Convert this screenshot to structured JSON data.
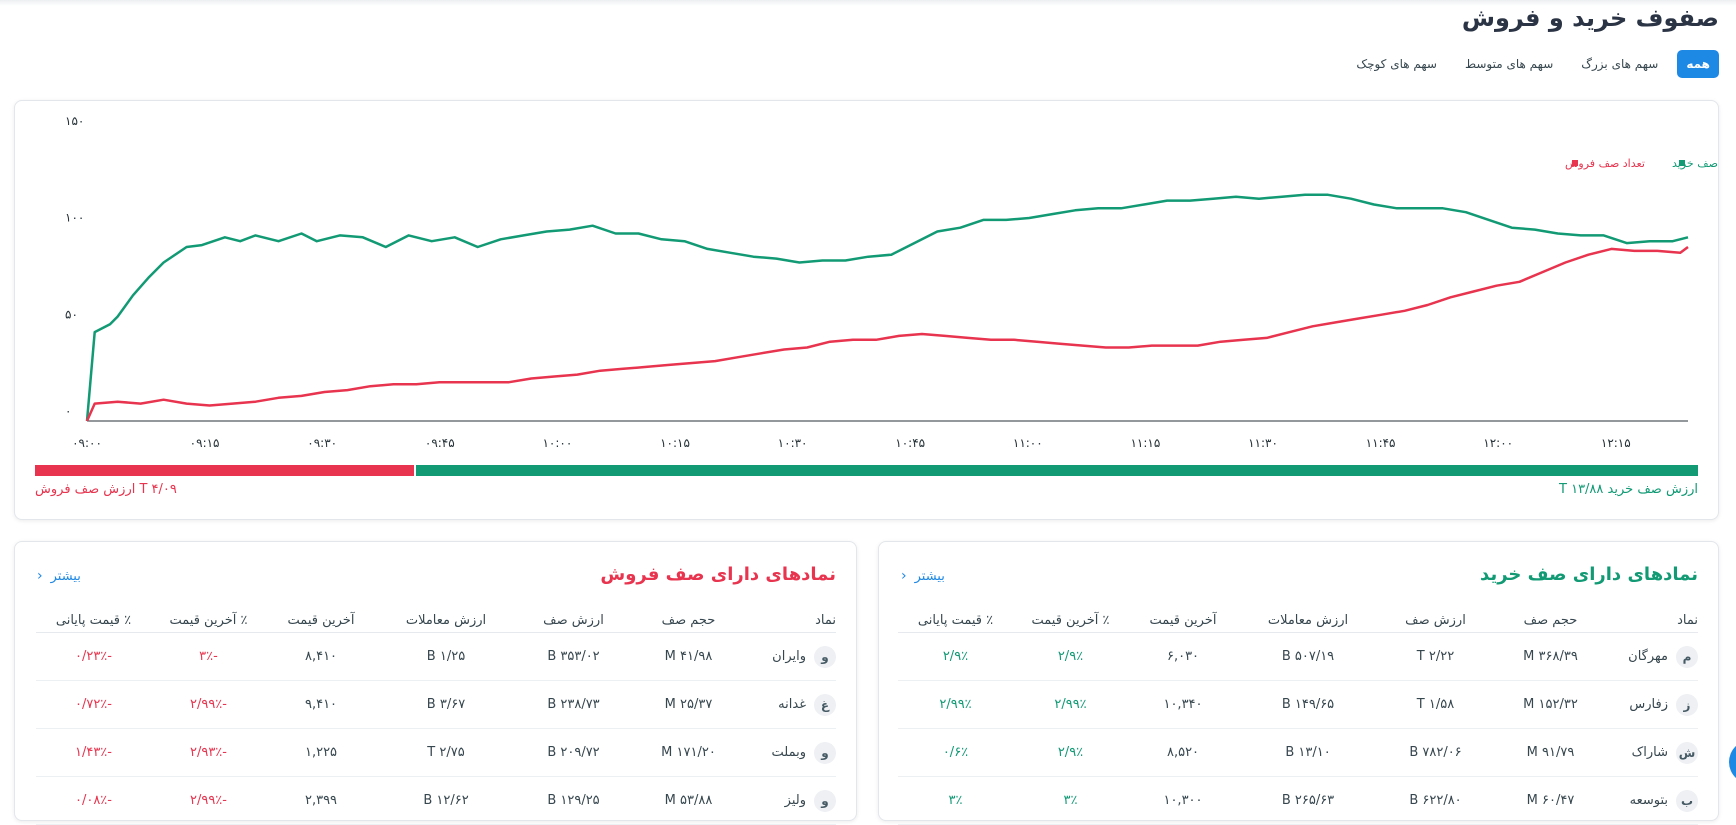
{
  "page": {
    "title": "صفوف خرید و فروش",
    "tabs": [
      {
        "label": "همه",
        "active": true
      },
      {
        "label": "سهم های بزرگ",
        "active": false
      },
      {
        "label": "سهم های متوسط",
        "active": false
      },
      {
        "label": "سهم های کوچک",
        "active": false
      }
    ]
  },
  "colors": {
    "buy": "#119a74",
    "sell": "#e8344e",
    "accent": "#1e88e5"
  },
  "chart_data": {
    "type": "line",
    "title": "",
    "xlabel": "",
    "ylabel": "",
    "x_ticks": [
      "۰۹:۰۰",
      "۰۹:۱۵",
      "۰۹:۳۰",
      "۰۹:۴۵",
      "۱۰:۰۰",
      "۱۰:۱۵",
      "۱۰:۳۰",
      "۱۰:۴۵",
      "۱۱:۰۰",
      "۱۱:۱۵",
      "۱۱:۳۰",
      "۱۱:۴۵",
      "۱۲:۰۰",
      "۱۲:۱۵"
    ],
    "x_range_minutes": [
      "09:00",
      "12:29"
    ],
    "y_ticks": [
      "۰",
      "۵۰",
      "۱۰۰",
      "۱۵۰"
    ],
    "ylim": [
      0,
      150
    ],
    "grid": false,
    "legend_position": "top-right",
    "series": [
      {
        "name": "تعداد صف خرید",
        "color": "#119a74",
        "points": [
          [
            "09:00",
            0
          ],
          [
            "09:01",
            46
          ],
          [
            "09:03",
            50
          ],
          [
            "09:04",
            54
          ],
          [
            "09:06",
            65
          ],
          [
            "09:08",
            74
          ],
          [
            "09:10",
            82
          ],
          [
            "09:13",
            90
          ],
          [
            "09:15",
            91
          ],
          [
            "09:18",
            95
          ],
          [
            "09:20",
            93
          ],
          [
            "09:22",
            96
          ],
          [
            "09:25",
            93
          ],
          [
            "09:28",
            97
          ],
          [
            "09:30",
            93
          ],
          [
            "09:33",
            96
          ],
          [
            "09:36",
            95
          ],
          [
            "09:39",
            90
          ],
          [
            "09:42",
            96
          ],
          [
            "09:45",
            93
          ],
          [
            "09:48",
            95
          ],
          [
            "09:51",
            90
          ],
          [
            "09:54",
            94
          ],
          [
            "09:57",
            96
          ],
          [
            "10:00",
            98
          ],
          [
            "10:03",
            99
          ],
          [
            "10:06",
            101
          ],
          [
            "10:09",
            97
          ],
          [
            "10:12",
            97
          ],
          [
            "10:15",
            94
          ],
          [
            "10:18",
            93
          ],
          [
            "10:21",
            89
          ],
          [
            "10:24",
            87
          ],
          [
            "10:27",
            85
          ],
          [
            "10:30",
            84
          ],
          [
            "10:33",
            82
          ],
          [
            "10:36",
            83
          ],
          [
            "10:39",
            83
          ],
          [
            "10:42",
            85
          ],
          [
            "10:45",
            86
          ],
          [
            "10:48",
            92
          ],
          [
            "10:51",
            98
          ],
          [
            "10:54",
            100
          ],
          [
            "10:57",
            104
          ],
          [
            "11:00",
            104
          ],
          [
            "11:03",
            105
          ],
          [
            "11:06",
            107
          ],
          [
            "11:09",
            109
          ],
          [
            "11:12",
            110
          ],
          [
            "11:15",
            110
          ],
          [
            "11:18",
            112
          ],
          [
            "11:21",
            114
          ],
          [
            "11:24",
            114
          ],
          [
            "11:27",
            115
          ],
          [
            "11:30",
            116
          ],
          [
            "11:33",
            115
          ],
          [
            "11:36",
            116
          ],
          [
            "11:39",
            117
          ],
          [
            "11:42",
            117
          ],
          [
            "11:45",
            115
          ],
          [
            "11:48",
            112
          ],
          [
            "11:51",
            110
          ],
          [
            "11:54",
            110
          ],
          [
            "11:57",
            110
          ],
          [
            "12:00",
            108
          ],
          [
            "12:03",
            104
          ],
          [
            "12:06",
            100
          ],
          [
            "12:09",
            99
          ],
          [
            "12:12",
            97
          ],
          [
            "12:15",
            96
          ],
          [
            "12:18",
            96
          ],
          [
            "12:21",
            92
          ],
          [
            "12:24",
            93
          ],
          [
            "12:27",
            93
          ],
          [
            "12:29",
            95
          ]
        ]
      },
      {
        "name": "تعداد صف فروش",
        "color": "#e8344e",
        "points": [
          [
            "09:00",
            0
          ],
          [
            "09:01",
            9
          ],
          [
            "09:04",
            10
          ],
          [
            "09:07",
            9
          ],
          [
            "09:10",
            11
          ],
          [
            "09:13",
            9
          ],
          [
            "09:16",
            8
          ],
          [
            "09:19",
            9
          ],
          [
            "09:22",
            10
          ],
          [
            "09:25",
            12
          ],
          [
            "09:28",
            13
          ],
          [
            "09:31",
            15
          ],
          [
            "09:34",
            16
          ],
          [
            "09:37",
            18
          ],
          [
            "09:40",
            19
          ],
          [
            "09:43",
            19
          ],
          [
            "09:46",
            20
          ],
          [
            "09:49",
            20
          ],
          [
            "09:52",
            20
          ],
          [
            "09:55",
            20
          ],
          [
            "09:58",
            22
          ],
          [
            "10:01",
            23
          ],
          [
            "10:04",
            24
          ],
          [
            "10:07",
            26
          ],
          [
            "10:10",
            27
          ],
          [
            "10:13",
            28
          ],
          [
            "10:16",
            29
          ],
          [
            "10:19",
            30
          ],
          [
            "10:22",
            31
          ],
          [
            "10:25",
            33
          ],
          [
            "10:28",
            35
          ],
          [
            "10:31",
            37
          ],
          [
            "10:34",
            38
          ],
          [
            "10:37",
            41
          ],
          [
            "10:40",
            42
          ],
          [
            "10:43",
            42
          ],
          [
            "10:46",
            44
          ],
          [
            "10:49",
            45
          ],
          [
            "10:52",
            44
          ],
          [
            "10:55",
            43
          ],
          [
            "10:58",
            42
          ],
          [
            "11:01",
            42
          ],
          [
            "11:04",
            41
          ],
          [
            "11:07",
            40
          ],
          [
            "11:10",
            39
          ],
          [
            "11:13",
            38
          ],
          [
            "11:16",
            38
          ],
          [
            "11:19",
            39
          ],
          [
            "11:22",
            39
          ],
          [
            "11:25",
            39
          ],
          [
            "11:28",
            41
          ],
          [
            "11:31",
            42
          ],
          [
            "11:34",
            43
          ],
          [
            "11:37",
            46
          ],
          [
            "11:40",
            49
          ],
          [
            "11:43",
            51
          ],
          [
            "11:46",
            53
          ],
          [
            "11:49",
            55
          ],
          [
            "11:52",
            57
          ],
          [
            "11:55",
            60
          ],
          [
            "11:58",
            64
          ],
          [
            "12:01",
            67
          ],
          [
            "12:04",
            70
          ],
          [
            "12:07",
            72
          ],
          [
            "12:10",
            77
          ],
          [
            "12:13",
            82
          ],
          [
            "12:16",
            86
          ],
          [
            "12:19",
            89
          ],
          [
            "12:22",
            88
          ],
          [
            "12:25",
            88
          ],
          [
            "12:28",
            87
          ],
          [
            "12:29",
            90
          ]
        ]
      }
    ]
  },
  "queue_value": {
    "buy_label": "ارزش صف خرید T ۱۳/۸۸",
    "sell_label": "T ۴/۰۹ ارزش صف فروش",
    "buy_value_t": 13.88,
    "sell_value_t": 4.09
  },
  "buy_panel": {
    "title": "نمادهای دارای صف خرید",
    "more": "بیشتر",
    "columns": [
      "نماد",
      "حجم صف",
      "ارزش صف",
      "ارزش معاملات",
      "آخرین قیمت",
      "٪ آخرین قیمت",
      "٪ قیمت پایانی"
    ],
    "rows": [
      {
        "avatar": "م",
        "symbol": "مهرگان",
        "queue_volume": "۳۶۸/۳۹ M",
        "queue_value": "۲/۲۲ T",
        "trade_value": "۵۰۷/۱۹ B",
        "last_price": "۶,۰۳۰",
        "last_pct": "۲/۹٪",
        "close_pct": "۲/۹٪"
      },
      {
        "avatar": "ز",
        "symbol": "زفارس",
        "queue_volume": "۱۵۲/۳۲ M",
        "queue_value": "۱/۵۸ T",
        "trade_value": "۱۴۹/۶۵ B",
        "last_price": "۱۰,۳۴۰",
        "last_pct": "۲/۹۹٪",
        "close_pct": "۲/۹۹٪"
      },
      {
        "avatar": "ش",
        "symbol": "شاراک",
        "queue_volume": "۹۱/۷۹ M",
        "queue_value": "۷۸۲/۰۶ B",
        "trade_value": "۱۳/۱۰ B",
        "last_price": "۸,۵۲۰",
        "last_pct": "۲/۹٪",
        "close_pct": "۰/۶٪"
      },
      {
        "avatar": "ب",
        "symbol": "بتوسعه",
        "queue_volume": "۶۰/۴۷ M",
        "queue_value": "۶۲۲/۸۰ B",
        "trade_value": "۲۶۵/۶۳ B",
        "last_price": "۱۰,۳۰۰",
        "last_pct": "۳٪",
        "close_pct": "۳٪"
      }
    ]
  },
  "sell_panel": {
    "title": "نمادهای دارای صف فروش",
    "more": "بیشتر",
    "columns": [
      "نماد",
      "حجم صف",
      "ارزش صف",
      "ارزش معاملات",
      "آخرین قیمت",
      "٪ آخرین قیمت",
      "٪ قیمت پایانی"
    ],
    "rows": [
      {
        "avatar": "و",
        "symbol": "وایران",
        "queue_volume": "۴۱/۹۸ M",
        "queue_value": "۳۵۳/۰۲ B",
        "trade_value": "۱/۲۵ B",
        "last_price": "۸,۴۱۰",
        "last_pct": "-۳٪",
        "close_pct": "-۰/۲۳٪"
      },
      {
        "avatar": "غ",
        "symbol": "غدانه",
        "queue_volume": "۲۵/۳۷ M",
        "queue_value": "۲۳۸/۷۳ B",
        "trade_value": "۳/۶۷ B",
        "last_price": "۹,۴۱۰",
        "last_pct": "-۲/۹۹٪",
        "close_pct": "-۰/۷۲٪"
      },
      {
        "avatar": "و",
        "symbol": "وبملت",
        "queue_volume": "۱۷۱/۲۰ M",
        "queue_value": "۲۰۹/۷۲ B",
        "trade_value": "۲/۷۵ T",
        "last_price": "۱,۲۲۵",
        "last_pct": "-۲/۹۳٪",
        "close_pct": "-۱/۴۳٪"
      },
      {
        "avatar": "و",
        "symbol": "ولیز",
        "queue_volume": "۵۳/۸۸ M",
        "queue_value": "۱۲۹/۲۵ B",
        "trade_value": "۱۲/۶۲ B",
        "last_price": "۲,۳۹۹",
        "last_pct": "-۲/۹۹٪",
        "close_pct": "-۰/۰۸٪"
      }
    ]
  }
}
